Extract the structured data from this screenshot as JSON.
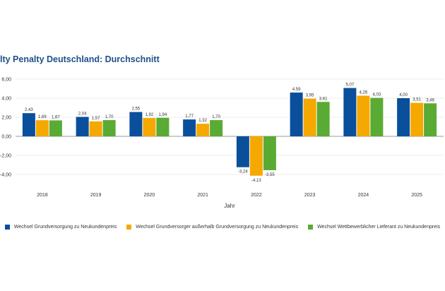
{
  "chart_data": {
    "type": "bar",
    "title": "lty Penalty Deutschland: Durchschnitt",
    "xlabel": "Jahr",
    "ylabel": "",
    "ylim": [
      -4,
      6
    ],
    "yticks": [
      "6,00",
      "4,00",
      "2,00",
      "0,00",
      "-2,00",
      "-4,00"
    ],
    "ytick_values": [
      6,
      4,
      2,
      0,
      -2,
      -4
    ],
    "grid": true,
    "legend_position": "bottom",
    "categories": [
      "2018",
      "2019",
      "2020",
      "2021",
      "2022",
      "2023",
      "2024",
      "2025"
    ],
    "series": [
      {
        "name": "Wechsel Grundversorgung zu Neukundenpreis",
        "color": "#0a4f9c",
        "values": [
          2.43,
          2.04,
          2.55,
          1.77,
          -3.24,
          4.59,
          5.07,
          4.0
        ]
      },
      {
        "name": "Wechsel Grundversorger außerhalb Grundversorgung zu Neukundenpreis",
        "color": "#f5a800",
        "values": [
          1.69,
          1.57,
          1.92,
          1.32,
          -4.13,
          3.95,
          4.26,
          3.51
        ]
      },
      {
        "name": "Wechsel Wettbewerblicher Lieferant zu Neukundenpreis",
        "color": "#5aab33",
        "values": [
          1.67,
          1.7,
          1.94,
          1.7,
          -3.55,
          3.61,
          4.03,
          3.46
        ]
      }
    ]
  }
}
